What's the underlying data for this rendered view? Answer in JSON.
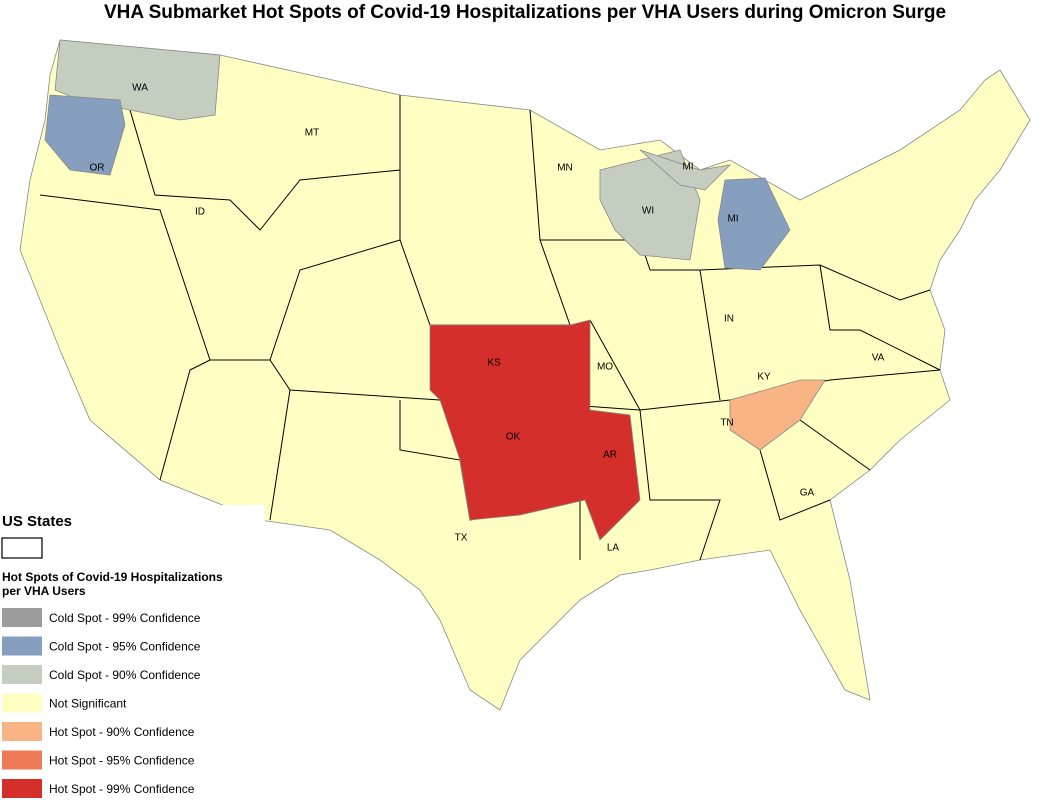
{
  "title": "VHA Submarket Hot Spots of Covid-19 Hospitalizations per VHA Users during Omicron Surge",
  "state_labels": [
    "WA",
    "OR",
    "ID",
    "MT",
    "MN",
    "MI",
    "WI",
    "MI",
    "KS",
    "MO",
    "IN",
    "KY",
    "VA",
    "OK",
    "AR",
    "TN",
    "TX",
    "LA",
    "GA"
  ],
  "legend": {
    "boundary_title": "US States",
    "title_lines": [
      "Hot Spots of Covid-19 Hospitalizations",
      "per VHA Users"
    ],
    "items": [
      {
        "label": "Cold Spot - 99% Confidence",
        "color": "#9c9c9c"
      },
      {
        "label": "Cold Spot - 95% Confidence",
        "color": "#869fbf"
      },
      {
        "label": "Cold Spot - 90% Confidence",
        "color": "#c5cdc0"
      },
      {
        "label": "Not Significant",
        "color": "#ffffc4"
      },
      {
        "label": "Hot Spot - 90% Confidence",
        "color": "#f9b486"
      },
      {
        "label": "Hot Spot - 95% Confidence",
        "color": "#ef7b56"
      },
      {
        "label": "Hot Spot - 99% Confidence",
        "color": "#d42f2a"
      }
    ]
  }
}
